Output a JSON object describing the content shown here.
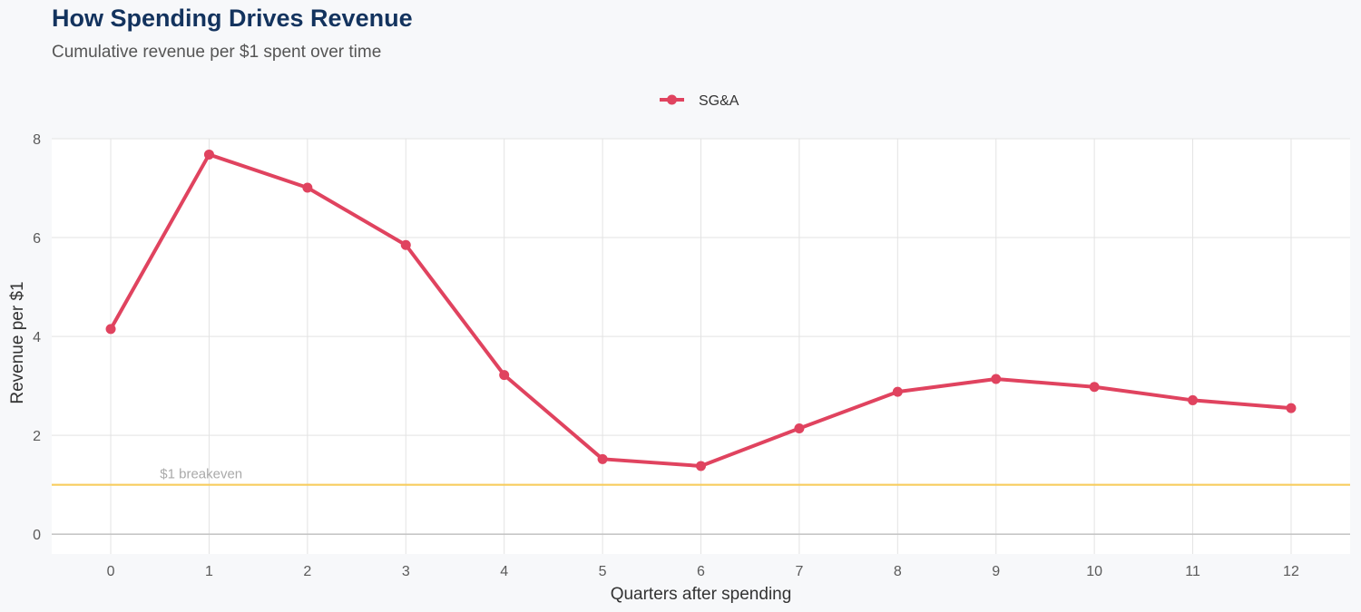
{
  "chart_data": {
    "type": "line",
    "title": "How Spending Drives Revenue",
    "subtitle": "Cumulative revenue per $1 spent over time",
    "xlabel": "Quarters after spending",
    "ylabel": "Revenue per $1",
    "x": [
      0,
      1,
      2,
      3,
      4,
      5,
      6,
      7,
      8,
      9,
      10,
      11,
      12
    ],
    "series": [
      {
        "name": "SG&A",
        "color": "#e0435f",
        "values": [
          4.15,
          7.68,
          7.01,
          5.85,
          3.22,
          1.52,
          1.38,
          2.14,
          2.88,
          3.14,
          2.98,
          2.71,
          2.55
        ]
      }
    ],
    "xlim": [
      -0.6,
      12.6
    ],
    "ylim": [
      -0.4,
      8
    ],
    "xticks": [
      0,
      1,
      2,
      3,
      4,
      5,
      6,
      7,
      8,
      9,
      10,
      11,
      12
    ],
    "yticks": [
      0,
      2,
      4,
      6,
      8
    ],
    "reference_line": {
      "value": 1,
      "label": "$1 breakeven",
      "color": "#f7cd5f"
    },
    "grid": true,
    "legend_position": "top-center"
  }
}
